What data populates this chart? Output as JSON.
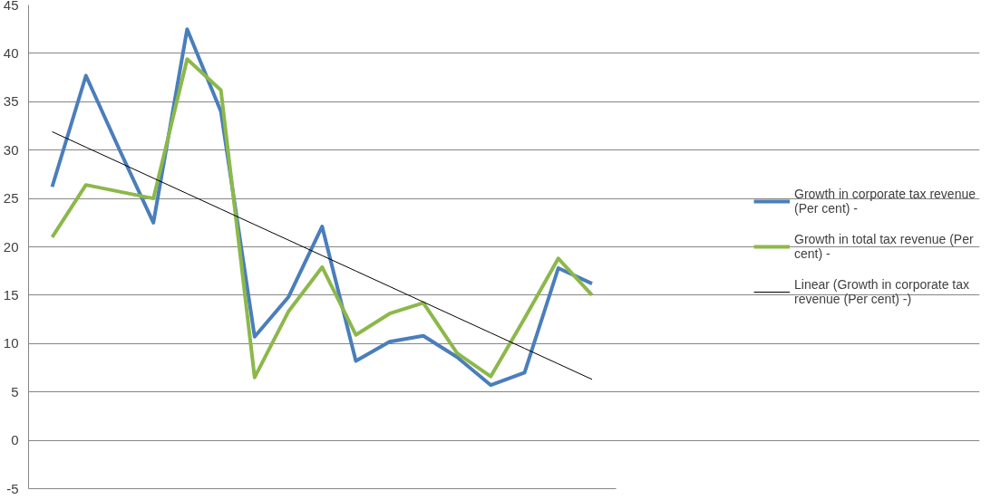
{
  "chart_data": {
    "type": "line",
    "categories": [
      null,
      null,
      null,
      null,
      null,
      null,
      null,
      null,
      null,
      null,
      null,
      null,
      null,
      null,
      null,
      null,
      null
    ],
    "series": [
      {
        "name": "Growth in corporate tax revenue (Per cent) -",
        "color": "#4a7ebb",
        "values": [
          26.2,
          37.7,
          30,
          22.5,
          42.5,
          34,
          10.7,
          14.8,
          22.1,
          8.2,
          10.2,
          10.8,
          8.6,
          5.7,
          7.0,
          17.8,
          16.2
        ]
      },
      {
        "name": "Growth in total tax revenue (Per cent) -",
        "color": "#8cb84a",
        "values": [
          21,
          26.4,
          25.7,
          25,
          39.4,
          36.2,
          6.5,
          13.3,
          17.9,
          10.9,
          13.1,
          14.2,
          9,
          6.6,
          12.6,
          18.8,
          15
        ]
      },
      {
        "name": "Linear (Growth in corporate tax revenue (Per cent) -)",
        "color": "#000000",
        "values": [
          31.9,
          30.3,
          28.7,
          27.1,
          25.5,
          23.9,
          22.3,
          20.7,
          19.1,
          17.5,
          15.9,
          14.3,
          12.7,
          11.1,
          9.5,
          7.9,
          6.3
        ]
      }
    ],
    "ylim": [
      -5,
      45
    ],
    "yticks": [
      -5,
      0,
      5,
      10,
      15,
      20,
      25,
      30,
      35,
      40,
      45
    ],
    "grid": "y",
    "legend": "right",
    "tick_labels": "y"
  }
}
